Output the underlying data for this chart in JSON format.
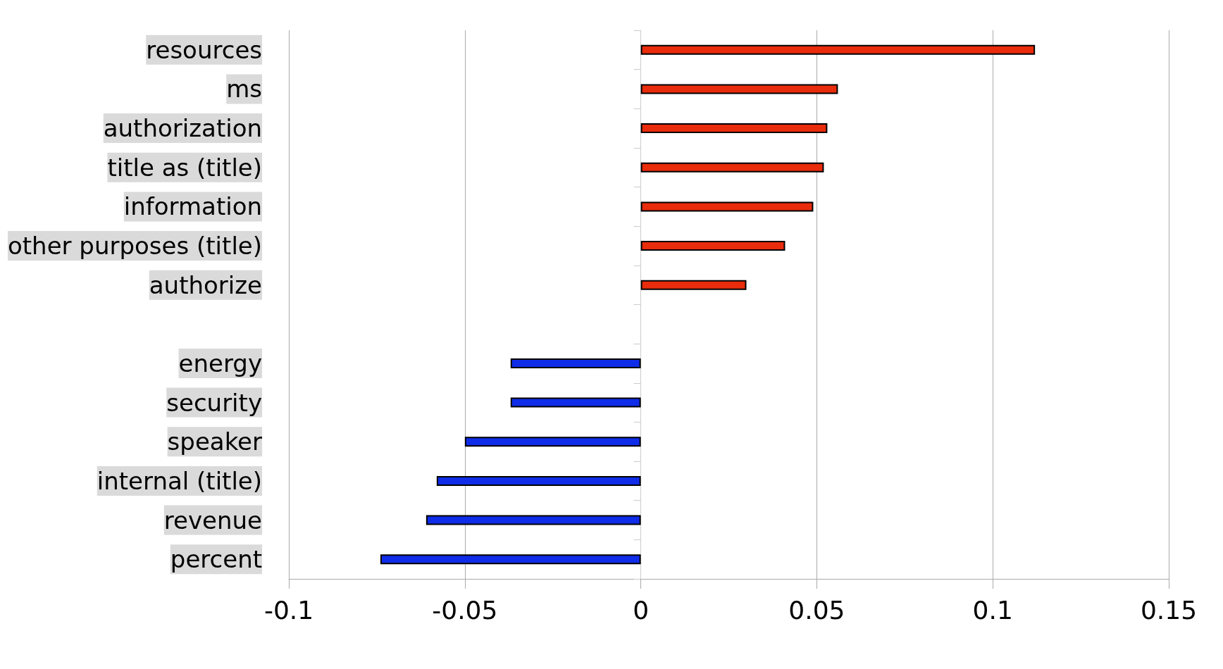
{
  "chart_data": {
    "type": "bar",
    "orientation": "horizontal",
    "categories": [
      "resources",
      "ms",
      "authorization",
      "title as (title)",
      "information",
      "other purposes (title)",
      "authorize",
      null,
      "energy",
      "security",
      "speaker",
      "internal (title)",
      "revenue",
      "percent"
    ],
    "values": [
      0.112,
      0.056,
      0.053,
      0.052,
      0.049,
      0.041,
      0.03,
      null,
      -0.037,
      -0.037,
      -0.05,
      -0.058,
      -0.061,
      -0.074
    ],
    "colors": [
      "#e82c0c",
      "#e82c0c",
      "#e82c0c",
      "#e82c0c",
      "#e82c0c",
      "#e82c0c",
      "#e82c0c",
      "#e82c0c",
      "#0f2de8",
      "#0f2de8",
      "#0f2de8",
      "#0f2de8",
      "#0f2de8",
      "#0f2de8"
    ],
    "xlim": [
      -0.1,
      0.15
    ],
    "xticks": [
      -0.1,
      -0.05,
      0,
      0.05,
      0.1,
      0.15
    ],
    "grid": "x"
  }
}
